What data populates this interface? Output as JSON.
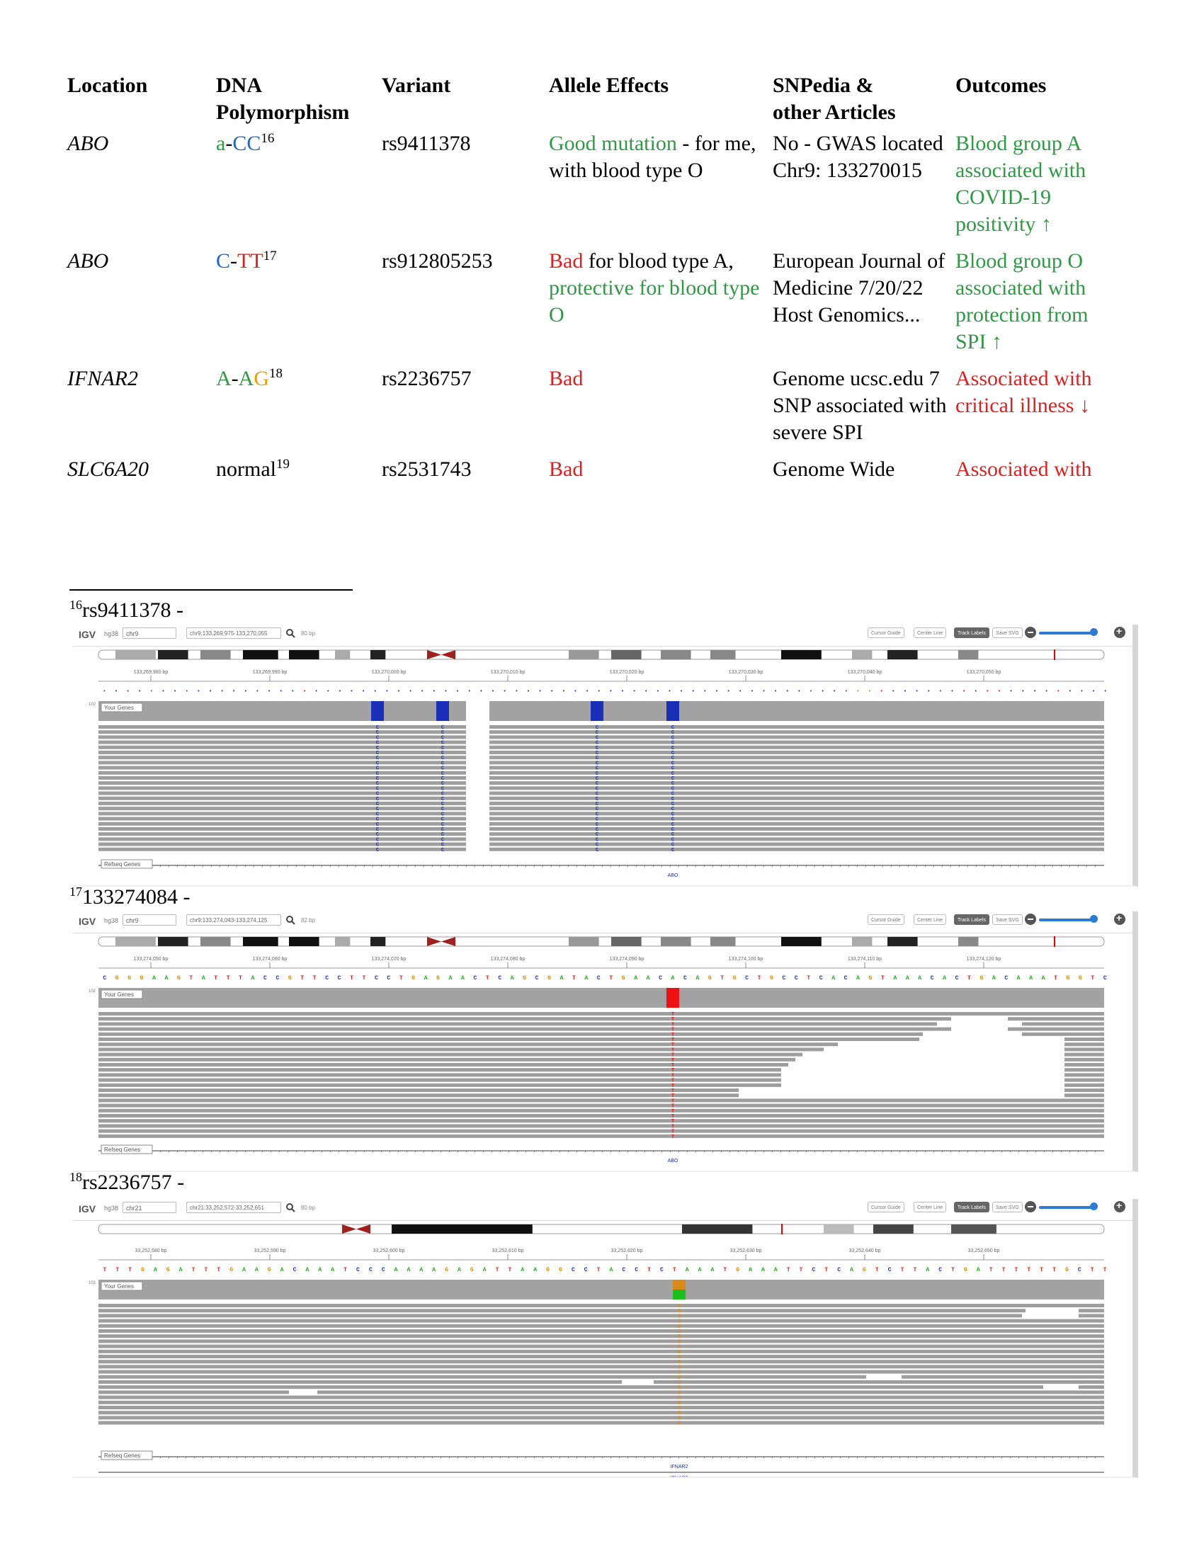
{
  "table": {
    "headers": [
      "Location",
      "DNA\nPolymorphism",
      "Variant",
      "Allele Effects",
      "SNPedia &\nother Articles",
      "Outcomes"
    ],
    "rows": [
      {
        "location": "ABO",
        "poly": [
          {
            "t": "a",
            "c": "green"
          },
          {
            "t": "-",
            "c": "black"
          },
          {
            "t": "CC",
            "c": "blue"
          }
        ],
        "poly_ref": "16",
        "variant": "rs9411378",
        "effects": [
          {
            "t": "Good mutation",
            "c": "green"
          },
          {
            "t": " - for me, with blood type O",
            "c": "black"
          }
        ],
        "articles": "No - GWAS located Chr9: 133270015",
        "outcomes": {
          "t": "Blood group A associated with COVID-19 positivity ↑",
          "c": "green"
        }
      },
      {
        "location": "ABO",
        "poly": [
          {
            "t": "C",
            "c": "blue"
          },
          {
            "t": "-",
            "c": "black"
          },
          {
            "t": "TT",
            "c": "red"
          }
        ],
        "poly_ref": "17",
        "variant": "rs912805253",
        "effects": [
          {
            "t": "Bad",
            "c": "red"
          },
          {
            "t": " for blood type A, ",
            "c": "black"
          },
          {
            "t": "protective for blood type O",
            "c": "green"
          }
        ],
        "articles": "European Journal of Medicine 7/20/22 Host Genomics...",
        "outcomes": {
          "t": "Blood group O associated with protection from SPI ↑",
          "c": "green"
        }
      },
      {
        "location": "IFNAR2",
        "poly": [
          {
            "t": "A",
            "c": "green"
          },
          {
            "t": "-",
            "c": "black"
          },
          {
            "t": "A",
            "c": "green"
          },
          {
            "t": "G",
            "c": "orange"
          }
        ],
        "poly_ref": "18",
        "variant": "rs2236757",
        "effects": [
          {
            "t": "Bad",
            "c": "red"
          }
        ],
        "articles": "Genome ucsc.edu 7 SNP associated with severe SPI",
        "outcomes": {
          "t": "Associated with critical illness ↓",
          "c": "red"
        }
      },
      {
        "location": "SLC6A20",
        "poly": [
          {
            "t": "normal",
            "c": "black"
          }
        ],
        "poly_ref": "19",
        "variant": "rs2531743",
        "effects": [
          {
            "t": "Bad",
            "c": "red"
          }
        ],
        "articles": "Genome Wide",
        "outcomes": {
          "t": "Associated with",
          "c": "red"
        }
      }
    ]
  },
  "footnotes": [
    {
      "num": "16",
      "text": "rs9411378 -"
    },
    {
      "num": "17",
      "text": "133274084 -"
    },
    {
      "num": "18",
      "text": "rs2236757 -"
    }
  ],
  "igv_ui": {
    "logo": "IGV",
    "genome": "hg38",
    "cursor_guide": "Cursor Guide",
    "center_line": "Center Line",
    "track_labels": "Track Labels",
    "save_svg": "Save SVG",
    "your_genes": "Your Genes",
    "refseq_genes": "Refseq Genes",
    "coverage_max": "102"
  },
  "panels": [
    {
      "chr": "chr9",
      "locus": "chr9:133,269,975-133,270,055",
      "bp": "80 bp",
      "ticks": [
        "133,269,980 bp",
        "133,269,990 bp",
        "133,270,000 bp",
        "133,270,010 bp",
        "133,270,020 bp",
        "133,270,030 bp",
        "133,270,040 bp",
        "133,270,050 bp"
      ],
      "gene": "ABO",
      "seq": "tctcacctccccccccctcccccccccccccccccccccccccccccccccccccccccctcctggtcccctctcttcccctcccc",
      "variant_color": "#1a2fb8",
      "variant_base": "C"
    },
    {
      "chr": "chr9",
      "locus": "chr9:133,274,043-133,274,125",
      "bp": "82 bp",
      "ticks": [
        "133,274,050 bp",
        "133,274,060 bp",
        "133,274,070 bp",
        "133,274,080 bp",
        "133,274,090 bp",
        "133,274,100 bp",
        "133,274,110 bp",
        "133,274,120 bp"
      ],
      "gene": "ABO",
      "seq": "CGGGAAGTATTTACCGTTCCTTCCTGAGAACTCAGCGATACTGAACACAGTGCTGCCTCACAGTAAACACTGACAAATGGTC",
      "variant_color": "#ee1111",
      "variant_base": "T"
    },
    {
      "chr": "chr21",
      "locus": "chr21:33,252,572-33,252,651",
      "bp": "80 bp",
      "ticks": [
        "33,252,580 bp",
        "33,252,590 bp",
        "33,252,600 bp",
        "33,252,610 bp",
        "33,252,620 bp",
        "33,252,630 bp",
        "33,252,640 bp",
        "33,252,650 bp"
      ],
      "gene": "IFNAR2",
      "seq": "TTTGAGATTTGAAGACAAATCCCAAAAGAGATTAAGGCCTACCTCTAAATGAAATTCTCAGTCTTACTGATTTTTTGCTT",
      "variant_color": "#d98a1a",
      "variant_base": "G"
    }
  ]
}
